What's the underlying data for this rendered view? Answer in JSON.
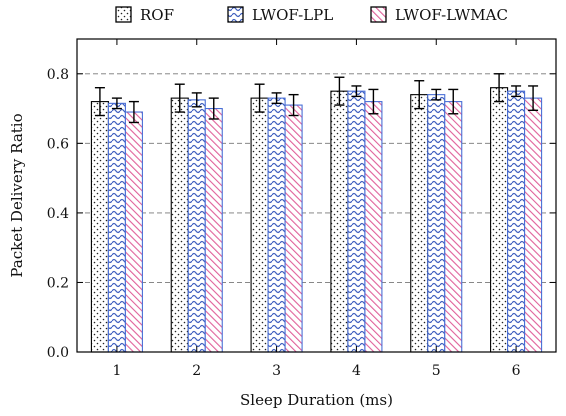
{
  "chart_data": {
    "type": "bar",
    "xlabel": "Sleep Duration (ms)",
    "ylabel": "Packet Delivery Ratio",
    "categories": [
      "1",
      "2",
      "3",
      "4",
      "5",
      "6"
    ],
    "ylim": [
      0,
      0.8
    ],
    "y_ticks": [
      "0.0",
      "0.2",
      "0.4",
      "0.6",
      "0.8"
    ],
    "grid": "horizontal dashed",
    "legend_position": "top",
    "series": [
      {
        "name": "ROF",
        "pattern": "dots",
        "color": "#222222",
        "values": [
          0.72,
          0.73,
          0.73,
          0.75,
          0.74,
          0.76
        ],
        "error": [
          0.04,
          0.04,
          0.04,
          0.04,
          0.04,
          0.04
        ]
      },
      {
        "name": "LWOF-LPL",
        "pattern": "waves",
        "color": "#3f5fbf",
        "values": [
          0.715,
          0.725,
          0.73,
          0.75,
          0.74,
          0.75
        ],
        "error": [
          0.015,
          0.02,
          0.015,
          0.015,
          0.015,
          0.015
        ]
      },
      {
        "name": "LWOF-LWMAC",
        "pattern": "stripes",
        "color": "#e0609a",
        "values": [
          0.69,
          0.7,
          0.71,
          0.72,
          0.72,
          0.73
        ],
        "error": [
          0.03,
          0.03,
          0.03,
          0.035,
          0.035,
          0.035
        ]
      }
    ]
  }
}
